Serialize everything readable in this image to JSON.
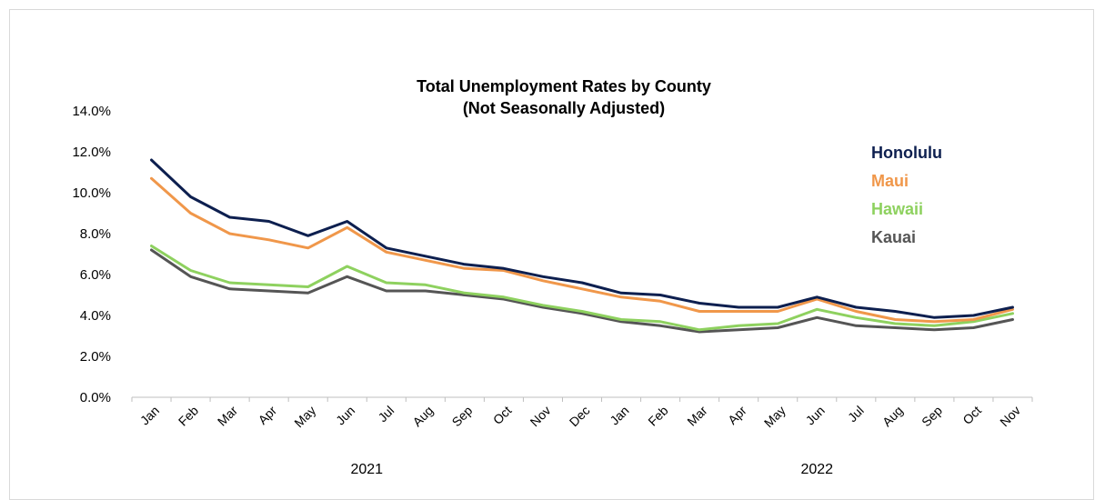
{
  "chart_data": {
    "type": "line",
    "title": "Total Unemployment Rates by County",
    "subtitle": "(Not Seasonally Adjusted)",
    "categories": [
      "Jan",
      "Feb",
      "Mar",
      "Apr",
      "May",
      "Jun",
      "Jul",
      "Aug",
      "Sep",
      "Oct",
      "Nov",
      "Dec",
      "Jan",
      "Feb",
      "Mar",
      "Apr",
      "May",
      "Jun",
      "Jul",
      "Aug",
      "Sep",
      "Oct",
      "Nov"
    ],
    "year_groups": [
      {
        "label": "2021",
        "start": 0,
        "end": 11
      },
      {
        "label": "2022",
        "start": 12,
        "end": 22
      }
    ],
    "y_ticks": [
      "0.0%",
      "2.0%",
      "4.0%",
      "6.0%",
      "8.0%",
      "10.0%",
      "12.0%",
      "14.0%"
    ],
    "ylim": [
      0,
      14
    ],
    "legend_position": "top-right",
    "series": [
      {
        "name": "Honolulu",
        "color": "#0d1f4f",
        "values": [
          11.6,
          9.8,
          8.8,
          8.6,
          7.9,
          8.6,
          7.3,
          6.9,
          6.5,
          6.3,
          5.9,
          5.6,
          5.1,
          5.0,
          4.6,
          4.4,
          4.4,
          4.9,
          4.4,
          4.2,
          3.9,
          4.0,
          4.4
        ]
      },
      {
        "name": "Maui",
        "color": "#f0974a",
        "values": [
          10.7,
          9.0,
          8.0,
          7.7,
          7.3,
          8.3,
          7.1,
          6.7,
          6.3,
          6.2,
          5.7,
          5.3,
          4.9,
          4.7,
          4.2,
          4.2,
          4.2,
          4.8,
          4.2,
          3.8,
          3.7,
          3.8,
          4.3
        ]
      },
      {
        "name": "Hawaii",
        "color": "#8ed15f",
        "values": [
          7.4,
          6.2,
          5.6,
          5.5,
          5.4,
          6.4,
          5.6,
          5.5,
          5.1,
          4.9,
          4.5,
          4.2,
          3.8,
          3.7,
          3.3,
          3.5,
          3.6,
          4.3,
          3.9,
          3.6,
          3.5,
          3.7,
          4.1
        ]
      },
      {
        "name": "Kauai",
        "color": "#555555",
        "values": [
          7.2,
          5.9,
          5.3,
          5.2,
          5.1,
          5.9,
          5.2,
          5.2,
          5.0,
          4.8,
          4.4,
          4.1,
          3.7,
          3.5,
          3.2,
          3.3,
          3.4,
          3.9,
          3.5,
          3.4,
          3.3,
          3.4,
          3.8
        ]
      }
    ]
  }
}
